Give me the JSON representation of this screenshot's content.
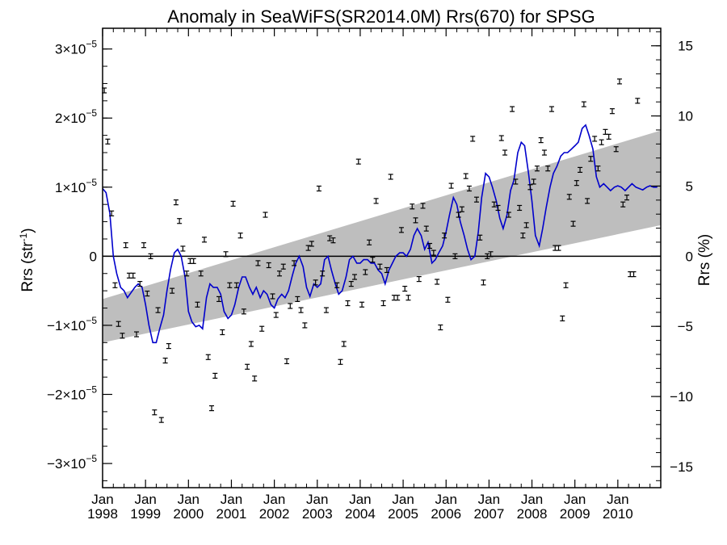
{
  "chart_data": {
    "type": "scatter",
    "title": "Anomaly in SeaWiFS(SR2014.0M) Rrs(670) for SPSG",
    "ylabel": "Rrs (str",
    "ylabel_sup": "-1",
    "ylabel_close": ")",
    "y2label": "Rrs (%)",
    "xlim": [
      1998.0,
      2011.0
    ],
    "ylim": [
      -3.35e-05,
      3.3e-05
    ],
    "y2lim": [
      -16.5,
      16.25
    ],
    "x_ticks": [
      {
        "x": 1998,
        "month": "Jan",
        "year": "1998"
      },
      {
        "x": 1999,
        "month": "Jan",
        "year": "1999"
      },
      {
        "x": 2000,
        "month": "Jan",
        "year": "2000"
      },
      {
        "x": 2001,
        "month": "Jan",
        "year": "2001"
      },
      {
        "x": 2002,
        "month": "Jan",
        "year": "2002"
      },
      {
        "x": 2003,
        "month": "Jan",
        "year": "2003"
      },
      {
        "x": 2004,
        "month": "Jan",
        "year": "2004"
      },
      {
        "x": 2005,
        "month": "Jan",
        "year": "2005"
      },
      {
        "x": 2006,
        "month": "Jan",
        "year": "2006"
      },
      {
        "x": 2007,
        "month": "Jan",
        "year": "2007"
      },
      {
        "x": 2008,
        "month": "Jan",
        "year": "2008"
      },
      {
        "x": 2009,
        "month": "Jan",
        "year": "2009"
      },
      {
        "x": 2010,
        "month": "Jan",
        "year": "2010"
      }
    ],
    "y_ticks": [
      {
        "y": 3e-05,
        "mantissa": "3×10",
        "exp": "−5"
      },
      {
        "y": 2e-05,
        "mantissa": "2×10",
        "exp": "−5"
      },
      {
        "y": 1e-05,
        "mantissa": "1×10",
        "exp": "−5"
      },
      {
        "y": 0,
        "mantissa": "0",
        "exp": ""
      },
      {
        "y": -1e-05,
        "mantissa": "−1×10",
        "exp": "−5"
      },
      {
        "y": -2e-05,
        "mantissa": "−2×10",
        "exp": "−5"
      },
      {
        "y": -3e-05,
        "mantissa": "−3×10",
        "exp": "−5"
      }
    ],
    "y2_ticks": [
      {
        "y": 15,
        "label": "15"
      },
      {
        "y": 10,
        "label": "10"
      },
      {
        "y": 5,
        "label": "5"
      },
      {
        "y": 0,
        "label": "0"
      },
      {
        "y": -5,
        "label": "−5"
      },
      {
        "y": -10,
        "label": "−10"
      },
      {
        "y": -15,
        "label": "−15"
      }
    ],
    "trend_band": {
      "x": [
        1998.0,
        2011.0
      ],
      "lower": [
        -1.25e-05,
        4.5e-06
      ],
      "upper": [
        -6.2e-06,
        1.82e-05
      ]
    },
    "zero_line": 0,
    "points": [
      {
        "x": 1998.04,
        "y": 2.4e-05
      },
      {
        "x": 1998.12,
        "y": 1.66e-05
      },
      {
        "x": 1998.21,
        "y": 6.2e-06
      },
      {
        "x": 1998.29,
        "y": -4.2e-06
      },
      {
        "x": 1998.37,
        "y": -9.8e-06
      },
      {
        "x": 1998.46,
        "y": -1.15e-05
      },
      {
        "x": 1998.54,
        "y": 1.6e-06
      },
      {
        "x": 1998.62,
        "y": -2.8e-06
      },
      {
        "x": 1998.71,
        "y": -2.8e-06
      },
      {
        "x": 1998.79,
        "y": -1.13e-05
      },
      {
        "x": 1998.87,
        "y": -4e-06
      },
      {
        "x": 1998.96,
        "y": 1.6e-06
      },
      {
        "x": 1999.04,
        "y": -5.4e-06
      },
      {
        "x": 1999.12,
        "y": 0.0
      },
      {
        "x": 1999.21,
        "y": -2.26e-05
      },
      {
        "x": 1999.29,
        "y": -7.8e-06
      },
      {
        "x": 1999.37,
        "y": -2.37e-05
      },
      {
        "x": 1999.46,
        "y": -1.51e-05
      },
      {
        "x": 1999.54,
        "y": -1.3e-05
      },
      {
        "x": 1999.62,
        "y": -5e-06
      },
      {
        "x": 1999.71,
        "y": 7.8e-06
      },
      {
        "x": 1999.79,
        "y": 5.1e-06
      },
      {
        "x": 1999.87,
        "y": 1.1e-06
      },
      {
        "x": 1999.96,
        "y": -2.5e-06
      },
      {
        "x": 2000.04,
        "y": -7e-07
      },
      {
        "x": 2000.12,
        "y": -7e-07
      },
      {
        "x": 2000.21,
        "y": -7e-06
      },
      {
        "x": 2000.29,
        "y": -2.5e-06
      },
      {
        "x": 2000.37,
        "y": 2.4e-06
      },
      {
        "x": 2000.46,
        "y": -1.46e-05
      },
      {
        "x": 2000.54,
        "y": -2.2e-05
      },
      {
        "x": 2000.62,
        "y": -1.73e-05
      },
      {
        "x": 2000.71,
        "y": -6.2e-06
      },
      {
        "x": 2000.79,
        "y": -1.1e-05
      },
      {
        "x": 2000.87,
        "y": 3e-07
      },
      {
        "x": 2000.96,
        "y": -4.2e-06
      },
      {
        "x": 2001.04,
        "y": 7.6e-06
      },
      {
        "x": 2001.12,
        "y": -4.2e-06
      },
      {
        "x": 2001.21,
        "y": 3e-06
      },
      {
        "x": 2001.29,
        "y": -8e-06
      },
      {
        "x": 2001.37,
        "y": -1.6e-05
      },
      {
        "x": 2001.46,
        "y": -1.27e-05
      },
      {
        "x": 2001.54,
        "y": -1.77e-05
      },
      {
        "x": 2001.62,
        "y": -1e-06
      },
      {
        "x": 2001.71,
        "y": -1.05e-05
      },
      {
        "x": 2001.79,
        "y": 6e-06
      },
      {
        "x": 2001.87,
        "y": -1.3e-06
      },
      {
        "x": 2001.96,
        "y": -5.8e-06
      },
      {
        "x": 2002.04,
        "y": -8.5e-06
      },
      {
        "x": 2002.12,
        "y": -2.5e-06
      },
      {
        "x": 2002.21,
        "y": -1.5e-06
      },
      {
        "x": 2002.29,
        "y": -1.52e-05
      },
      {
        "x": 2002.37,
        "y": -7.2e-06
      },
      {
        "x": 2002.46,
        "y": -1e-06
      },
      {
        "x": 2002.54,
        "y": -6.2e-06
      },
      {
        "x": 2002.62,
        "y": -7.8e-06
      },
      {
        "x": 2002.71,
        "y": -1e-05
      },
      {
        "x": 2002.79,
        "y": 1.2e-06
      },
      {
        "x": 2002.87,
        "y": 1.8e-06
      },
      {
        "x": 2002.96,
        "y": -3.8e-06
      },
      {
        "x": 2003.04,
        "y": 9.8e-06
      },
      {
        "x": 2003.12,
        "y": -2.5e-06
      },
      {
        "x": 2003.21,
        "y": -7.8e-06
      },
      {
        "x": 2003.29,
        "y": 2.6e-06
      },
      {
        "x": 2003.37,
        "y": 2.3e-06
      },
      {
        "x": 2003.46,
        "y": -4.2e-06
      },
      {
        "x": 2003.54,
        "y": -1.53e-05
      },
      {
        "x": 2003.62,
        "y": -1.27e-05
      },
      {
        "x": 2003.71,
        "y": -6.8e-06
      },
      {
        "x": 2003.79,
        "y": -4e-06
      },
      {
        "x": 2003.87,
        "y": -3e-06
      },
      {
        "x": 2003.96,
        "y": 1.37e-05
      },
      {
        "x": 2004.04,
        "y": -7e-06
      },
      {
        "x": 2004.12,
        "y": -2.3e-06
      },
      {
        "x": 2004.21,
        "y": 2e-06
      },
      {
        "x": 2004.29,
        "y": -5e-07
      },
      {
        "x": 2004.37,
        "y": 8e-06
      },
      {
        "x": 2004.46,
        "y": -1.5e-06
      },
      {
        "x": 2004.54,
        "y": -6.8e-06
      },
      {
        "x": 2004.62,
        "y": -2e-06
      },
      {
        "x": 2004.71,
        "y": 1.15e-05
      },
      {
        "x": 2004.79,
        "y": -6e-06
      },
      {
        "x": 2004.87,
        "y": -6e-06
      },
      {
        "x": 2004.96,
        "y": 3.8e-06
      },
      {
        "x": 2005.04,
        "y": -4.7e-06
      },
      {
        "x": 2005.12,
        "y": -6e-06
      },
      {
        "x": 2005.21,
        "y": 7.2e-06
      },
      {
        "x": 2005.29,
        "y": 5.2e-06
      },
      {
        "x": 2005.37,
        "y": -3.3e-06
      },
      {
        "x": 2005.46,
        "y": 7.3e-06
      },
      {
        "x": 2005.54,
        "y": 4e-06
      },
      {
        "x": 2005.62,
        "y": 1.5e-06
      },
      {
        "x": 2005.71,
        "y": 5e-07
      },
      {
        "x": 2005.79,
        "y": -3.7e-06
      },
      {
        "x": 2005.87,
        "y": -1.03e-05
      },
      {
        "x": 2005.96,
        "y": 3e-06
      },
      {
        "x": 2006.04,
        "y": -6.3e-06
      },
      {
        "x": 2006.12,
        "y": 1.02e-05
      },
      {
        "x": 2006.21,
        "y": 0.0
      },
      {
        "x": 2006.29,
        "y": 6e-06
      },
      {
        "x": 2006.37,
        "y": 6.8e-06
      },
      {
        "x": 2006.46,
        "y": 1.16e-05
      },
      {
        "x": 2006.54,
        "y": 9.8e-06
      },
      {
        "x": 2006.62,
        "y": 1.7e-05
      },
      {
        "x": 2006.71,
        "y": 8.2e-06
      },
      {
        "x": 2006.79,
        "y": 2.7e-06
      },
      {
        "x": 2006.87,
        "y": -3.8e-06
      },
      {
        "x": 2006.96,
        "y": 0.0
      },
      {
        "x": 2007.04,
        "y": 3e-07
      },
      {
        "x": 2007.12,
        "y": 7.5e-06
      },
      {
        "x": 2007.21,
        "y": 7e-06
      },
      {
        "x": 2007.29,
        "y": 1.71e-05
      },
      {
        "x": 2007.37,
        "y": 1.5e-05
      },
      {
        "x": 2007.46,
        "y": 6e-06
      },
      {
        "x": 2007.54,
        "y": 2.13e-05
      },
      {
        "x": 2007.62,
        "y": 1.08e-05
      },
      {
        "x": 2007.71,
        "y": 7e-06
      },
      {
        "x": 2007.79,
        "y": 3e-06
      },
      {
        "x": 2007.87,
        "y": 4.5e-06
      },
      {
        "x": 2007.96,
        "y": 1e-05
      },
      {
        "x": 2008.04,
        "y": 1.08e-05
      },
      {
        "x": 2008.12,
        "y": 1.27e-05
      },
      {
        "x": 2008.21,
        "y": 1.68e-05
      },
      {
        "x": 2008.29,
        "y": 1.5e-05
      },
      {
        "x": 2008.37,
        "y": 1.27e-05
      },
      {
        "x": 2008.46,
        "y": 2.13e-05
      },
      {
        "x": 2008.54,
        "y": 1.2e-06
      },
      {
        "x": 2008.62,
        "y": 1.2e-06
      },
      {
        "x": 2008.71,
        "y": -9e-06
      },
      {
        "x": 2008.79,
        "y": -4.2e-06
      },
      {
        "x": 2008.87,
        "y": 8.6e-06
      },
      {
        "x": 2008.96,
        "y": 4.7e-06
      },
      {
        "x": 2009.04,
        "y": 1.06e-05
      },
      {
        "x": 2009.12,
        "y": 1.25e-05
      },
      {
        "x": 2009.21,
        "y": 2.2e-05
      },
      {
        "x": 2009.29,
        "y": 8e-06
      },
      {
        "x": 2009.37,
        "y": 1.41e-05
      },
      {
        "x": 2009.46,
        "y": 1.7e-05
      },
      {
        "x": 2009.54,
        "y": 1.27e-05
      },
      {
        "x": 2009.62,
        "y": 1.65e-05
      },
      {
        "x": 2009.71,
        "y": 1.8e-05
      },
      {
        "x": 2009.79,
        "y": 1.73e-05
      },
      {
        "x": 2009.87,
        "y": 2.1e-05
      },
      {
        "x": 2009.96,
        "y": 1.55e-05
      },
      {
        "x": 2010.04,
        "y": 2.53e-05
      },
      {
        "x": 2010.12,
        "y": 7.5e-06
      },
      {
        "x": 2010.21,
        "y": 8.5e-06
      },
      {
        "x": 2010.29,
        "y": -2.6e-06
      },
      {
        "x": 2010.37,
        "y": -2.6e-06
      },
      {
        "x": 2010.46,
        "y": 2.25e-05
      }
    ],
    "smoothed_line": {
      "x": [
        1998.0,
        1998.08,
        1998.17,
        1998.25,
        1998.33,
        1998.42,
        1998.5,
        1998.58,
        1998.67,
        1998.75,
        1998.83,
        1998.92,
        1999.0,
        1999.08,
        1999.17,
        1999.25,
        1999.33,
        1999.42,
        1999.5,
        1999.58,
        1999.67,
        1999.75,
        1999.83,
        1999.92,
        2000.0,
        2000.08,
        2000.17,
        2000.25,
        2000.33,
        2000.42,
        2000.5,
        2000.58,
        2000.67,
        2000.75,
        2000.83,
        2000.92,
        2001.0,
        2001.08,
        2001.17,
        2001.25,
        2001.33,
        2001.42,
        2001.5,
        2001.58,
        2001.67,
        2001.75,
        2001.83,
        2001.92,
        2002.0,
        2002.08,
        2002.17,
        2002.25,
        2002.33,
        2002.42,
        2002.5,
        2002.58,
        2002.67,
        2002.75,
        2002.83,
        2002.92,
        2003.0,
        2003.08,
        2003.17,
        2003.25,
        2003.33,
        2003.42,
        2003.5,
        2003.58,
        2003.67,
        2003.75,
        2003.83,
        2003.92,
        2004.0,
        2004.08,
        2004.17,
        2004.25,
        2004.33,
        2004.42,
        2004.5,
        2004.58,
        2004.67,
        2004.75,
        2004.83,
        2004.92,
        2005.0,
        2005.08,
        2005.17,
        2005.25,
        2005.33,
        2005.42,
        2005.5,
        2005.58,
        2005.67,
        2005.75,
        2005.83,
        2005.92,
        2006.0,
        2006.08,
        2006.17,
        2006.25,
        2006.33,
        2006.42,
        2006.5,
        2006.58,
        2006.67,
        2006.75,
        2006.83,
        2006.92,
        2007.0,
        2007.08,
        2007.17,
        2007.25,
        2007.33,
        2007.42,
        2007.5,
        2007.58,
        2007.67,
        2007.75,
        2007.83,
        2007.92,
        2008.0,
        2008.08,
        2008.17,
        2008.25,
        2008.33,
        2008.42,
        2008.5,
        2008.58,
        2008.67,
        2008.75,
        2008.83,
        2008.92,
        2009.0,
        2009.08,
        2009.17,
        2009.25,
        2009.33,
        2009.42,
        2009.5,
        2009.58,
        2009.67,
        2009.75,
        2009.83,
        2009.92,
        2010.0,
        2010.08,
        2010.17,
        2010.25,
        2010.33,
        2010.42,
        2010.5,
        2010.58,
        2010.67,
        2010.75,
        2010.83,
        2010.92
      ],
      "y": [
        9.8e-06,
        9.2e-06,
        6.2e-06,
        0.0,
        -2.5e-06,
        -4.5e-06,
        -5e-06,
        -6e-06,
        -5.2e-06,
        -4.5e-06,
        -4e-06,
        -4.5e-06,
        -7e-06,
        -1e-05,
        -1.25e-05,
        -1.25e-05,
        -1.05e-05,
        -8.5e-06,
        -5e-06,
        -2e-06,
        5e-07,
        1e-06,
        0.0,
        -3e-06,
        -8e-06,
        -9.5e-06,
        -1.02e-05,
        -1e-05,
        -1.05e-05,
        -6e-06,
        -4e-06,
        -4.5e-06,
        -4.5e-06,
        -5.5e-06,
        -8e-06,
        -9e-06,
        -8.5e-06,
        -7e-06,
        -4.5e-06,
        -3e-06,
        -3e-06,
        -4.5e-06,
        -5.5e-06,
        -4.5e-06,
        -6e-06,
        -5e-06,
        -5.5e-06,
        -7e-06,
        -7.5e-06,
        -6.2e-06,
        -5.5e-06,
        -6e-06,
        -5e-06,
        -2.8e-06,
        -1e-06,
        0.0,
        -1.5e-06,
        -4.5e-06,
        -5.8e-06,
        -4e-06,
        -4.5e-06,
        -4e-06,
        -5e-07,
        0.0,
        -2e-06,
        -4e-06,
        -5.5e-06,
        -5e-06,
        -3e-06,
        -5e-07,
        0.0,
        -1e-06,
        -1e-06,
        -5e-07,
        -5e-07,
        -1e-06,
        -1e-06,
        -2e-06,
        -2.5e-06,
        -4e-06,
        -2e-06,
        -1e-06,
        0.0,
        5e-07,
        5e-07,
        0.0,
        1e-06,
        3e-06,
        4e-06,
        3e-06,
        1e-06,
        2e-06,
        -1e-06,
        -5e-07,
        5e-07,
        1.5e-06,
        3.5e-06,
        6e-06,
        8.5e-06,
        7.5e-06,
        5e-06,
        3e-06,
        1e-06,
        -5e-07,
        0.0,
        3.5e-06,
        8.5e-06,
        1.2e-05,
        1.15e-05,
        1e-05,
        8e-06,
        5.5e-06,
        4e-06,
        6e-06,
        9.5e-06,
        1.1e-05,
        1.5e-05,
        1.65e-05,
        1.6e-05,
        1.2e-05,
        8e-06,
        3e-06,
        1.5e-06,
        4e-06,
        7e-06,
        1e-05,
        1.2e-05,
        1.3e-05,
        1.45e-05,
        1.5e-05,
        1.5e-05,
        1.55e-05,
        1.6e-05,
        1.65e-05,
        1.85e-05,
        1.9e-05,
        1.75e-05,
        1.55e-05,
        1.15e-05,
        1e-05,
        1.05e-05,
        1e-05,
        9.5e-06,
        1e-05,
        1.02e-05,
        1e-05,
        9.5e-06,
        1e-05,
        1.05e-05,
        1e-05,
        9.8e-06,
        9.6e-06,
        1e-05,
        1.02e-05,
        1e-05,
        1e-05
      ]
    },
    "series_colors": {
      "points": "#000000",
      "line": "#0000cc",
      "band": "#bebebe"
    },
    "grid": false,
    "legend": "none"
  }
}
